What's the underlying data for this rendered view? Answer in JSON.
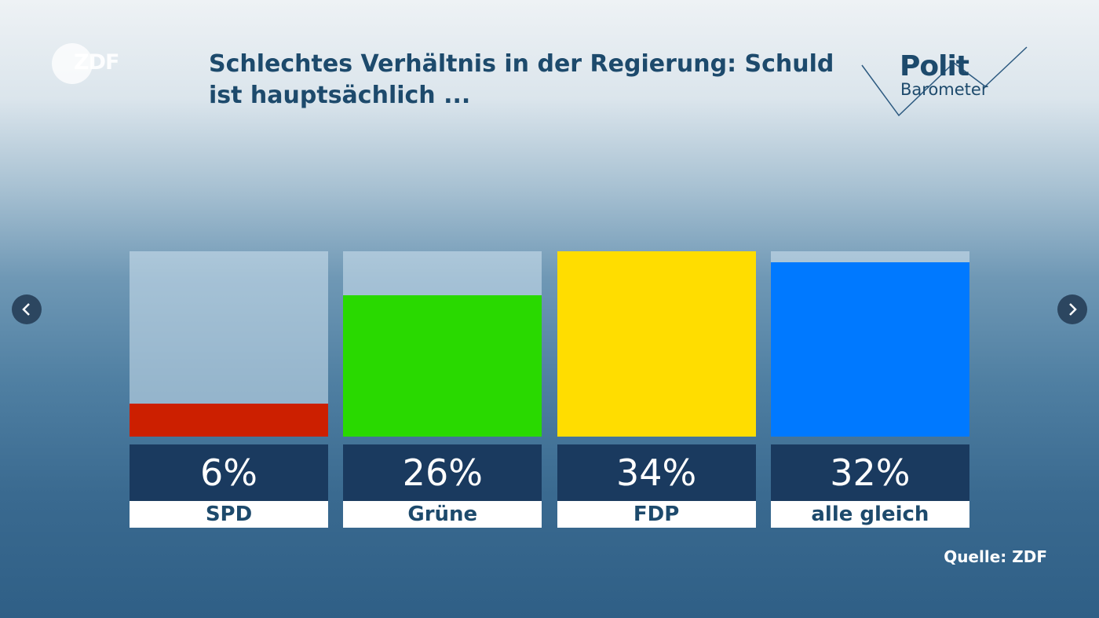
{
  "brand": {
    "channel": "ZDF",
    "show": [
      "Polit",
      "Barometer"
    ]
  },
  "chart_data": {
    "type": "bar",
    "title": "Schlechtes Verhältnis in der Regierung: Schuld ist hauptsächlich ...",
    "categories": [
      "SPD",
      "Grüne",
      "FDP",
      "alle gleich"
    ],
    "values": [
      6,
      26,
      34,
      32
    ],
    "value_labels": [
      "6%",
      "26%",
      "34%",
      "32%"
    ],
    "colors": [
      "#cc1f00",
      "#29d900",
      "#ffdd00",
      "#0079ff"
    ],
    "ylim": [
      0,
      34
    ],
    "source": "Quelle: ZDF"
  }
}
